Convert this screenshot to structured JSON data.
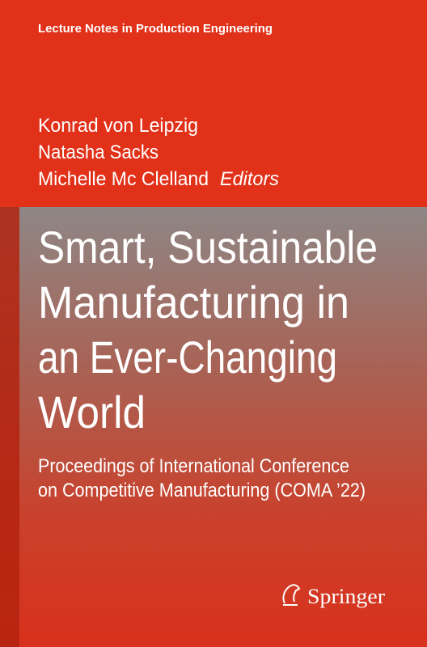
{
  "series": "Lecture Notes in Production Engineering",
  "editors": [
    "Konrad von Leipzig",
    "Natasha Sacks",
    "Michelle Mc Clelland"
  ],
  "editors_label": "Editors",
  "title": [
    "Smart, Sustainable",
    "Manufacturing in",
    "an Ever-Changing",
    "World"
  ],
  "subtitle": [
    "Proceedings of International Conference",
    "on Competitive Manufacturing (COMA ’22)"
  ],
  "publisher": "Springer"
}
